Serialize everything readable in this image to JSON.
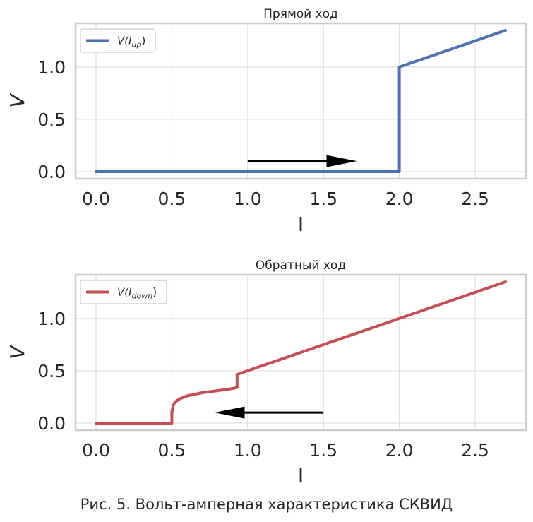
{
  "caption": "Рис. 5. Вольт-амперная характеристика СКВИД",
  "chart_data": [
    {
      "type": "line",
      "title": "Прямой ход",
      "xlabel": "I",
      "ylabel": "V",
      "xlim": [
        -0.135,
        2.835
      ],
      "ylim": [
        -0.0675,
        1.4175
      ],
      "x_ticks": [
        "0.0",
        "0.5",
        "1.0",
        "1.5",
        "2.0",
        "2.5"
      ],
      "y_ticks": [
        "0.0",
        "0.5",
        "1.0"
      ],
      "grid": true,
      "legend_position": "top-left",
      "series": [
        {
          "name": "V(I_up)",
          "legend_main": "V(I",
          "legend_sub": "up",
          "legend_close": ")",
          "color": "#4c72b0",
          "x": [
            0.0,
            2.0,
            2.0,
            2.7
          ],
          "y": [
            0.0,
            0.0,
            1.0,
            1.35
          ]
        }
      ],
      "annotations": [
        {
          "type": "arrow",
          "direction": "right",
          "x_start": 1.0,
          "x_end": 1.72,
          "y": 0.1,
          "color": "#000000"
        }
      ]
    },
    {
      "type": "line",
      "title": "Обратный ход",
      "xlabel": "I",
      "ylabel": "V",
      "xlim": [
        -0.135,
        2.835
      ],
      "ylim": [
        -0.0675,
        1.4175
      ],
      "x_ticks": [
        "0.0",
        "0.5",
        "1.0",
        "1.5",
        "2.0",
        "2.5"
      ],
      "y_ticks": [
        "0.0",
        "0.5",
        "1.0"
      ],
      "grid": true,
      "legend_position": "top-left",
      "series": [
        {
          "name": "V(I_down)",
          "legend_main": "V(I",
          "legend_sub": "down",
          "legend_close": ")",
          "color": "#c44e52",
          "x": [
            2.7,
            2.0,
            1.5,
            1.0,
            0.94,
            0.93,
            0.93,
            0.9,
            0.8,
            0.7,
            0.6,
            0.55,
            0.52,
            0.51,
            0.505,
            0.5,
            0.5,
            0.4,
            0.0
          ],
          "y": [
            1.35,
            1.0,
            0.75,
            0.5,
            0.47,
            0.465,
            0.34,
            0.33,
            0.31,
            0.29,
            0.26,
            0.23,
            0.2,
            0.17,
            0.14,
            0.1,
            0.0,
            0.0,
            0.0
          ]
        }
      ],
      "annotations": [
        {
          "type": "arrow",
          "direction": "left",
          "x_start": 1.5,
          "x_end": 0.78,
          "y": 0.1,
          "color": "#000000"
        }
      ]
    }
  ]
}
